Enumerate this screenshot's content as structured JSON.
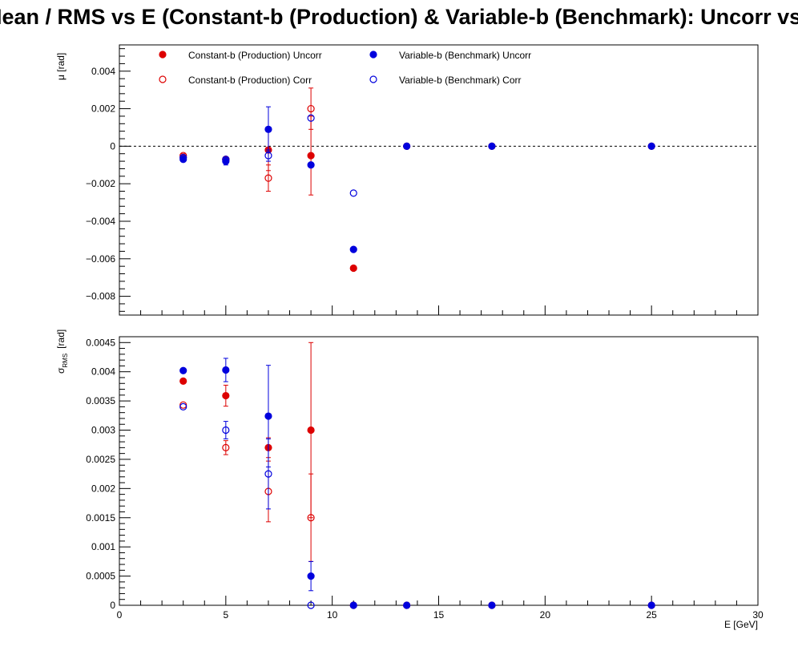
{
  "title": "Mean / RMS vs E  (Constant-b (Production) & Variable-b (Benchmark): Uncorr vs Corr)",
  "colors": {
    "production": "#dd0000",
    "benchmark": "#0000dd"
  },
  "chart_data": [
    {
      "type": "scatter",
      "ylabel": "μ  [rad]",
      "xlim": [
        0,
        30
      ],
      "ylim": [
        -0.009,
        0.0054
      ],
      "yticks": [
        {
          "v": 0.004,
          "label": "0.004"
        },
        {
          "v": 0.002,
          "label": "0.002"
        },
        {
          "v": 0,
          "label": "0"
        },
        {
          "v": -0.002,
          "label": "−0.002"
        },
        {
          "v": -0.004,
          "label": "−0.004"
        },
        {
          "v": -0.006,
          "label": "−0.006"
        },
        {
          "v": -0.008,
          "label": "−0.008"
        }
      ],
      "reference_line": 0,
      "legend": [
        {
          "label": "Constant-b (Production) Uncorr",
          "color": "#dd0000",
          "filled": true
        },
        {
          "label": "Variable-b (Benchmark) Uncorr",
          "color": "#0000dd",
          "filled": true
        },
        {
          "label": "Constant-b (Production) Corr",
          "color": "#dd0000",
          "filled": false
        },
        {
          "label": "Variable-b (Benchmark) Corr",
          "color": "#0000dd",
          "filled": false
        }
      ],
      "series": [
        {
          "name": "Constant-b (Production) Uncorr",
          "color": "#dd0000",
          "filled": true,
          "x": [
            3,
            5,
            7,
            9,
            11,
            13.5,
            17.5,
            25
          ],
          "y": [
            -0.0006,
            -0.0007,
            -0.0002,
            -0.0005,
            -0.0065,
            0,
            0,
            0
          ],
          "err": [
            0.0001,
            0.0001,
            0.0011,
            0.0021,
            0,
            0,
            0,
            0
          ]
        },
        {
          "name": "Constant-b (Production) Corr",
          "color": "#dd0000",
          "filled": false,
          "x": [
            3,
            5,
            7,
            9
          ],
          "y": [
            -0.0005,
            -0.0007,
            -0.0017,
            0.002
          ],
          "err": [
            0.0001,
            0.0001,
            0.0007,
            0.0011
          ]
        },
        {
          "name": "Variable-b (Benchmark) Uncorr",
          "color": "#0000dd",
          "filled": true,
          "x": [
            3,
            5,
            7,
            9,
            11,
            13.5,
            17.5,
            25
          ],
          "y": [
            -0.0007,
            -0.0008,
            0.0009,
            -0.001,
            -0.0055,
            0,
            0,
            0
          ],
          "err": [
            0.0001,
            0.0002,
            0.0012,
            0.0001,
            0,
            0,
            0,
            0
          ]
        },
        {
          "name": "Variable-b (Benchmark) Corr",
          "color": "#0000dd",
          "filled": false,
          "x": [
            3,
            5,
            7,
            9,
            11
          ],
          "y": [
            -0.0006,
            -0.0007,
            -0.0005,
            0.0015,
            -0.0025
          ],
          "err": [
            0.0001,
            0.0001,
            0.0003,
            0,
            0
          ]
        }
      ]
    },
    {
      "type": "scatter",
      "ylabel": "σ",
      "ylabel_sub": "RMS",
      "ylabel_unit": "[rad]",
      "xlabel": "E  [GeV]",
      "xlim": [
        0,
        30
      ],
      "ylim": [
        0,
        0.0046
      ],
      "xticks": [
        {
          "v": 0,
          "label": "0"
        },
        {
          "v": 5,
          "label": "5"
        },
        {
          "v": 10,
          "label": "10"
        },
        {
          "v": 15,
          "label": "15"
        },
        {
          "v": 20,
          "label": "20"
        },
        {
          "v": 25,
          "label": "25"
        },
        {
          "v": 30,
          "label": "30"
        }
      ],
      "yticks": [
        {
          "v": 0,
          "label": "0"
        },
        {
          "v": 0.0005,
          "label": "0.0005"
        },
        {
          "v": 0.001,
          "label": "0.001"
        },
        {
          "v": 0.0015,
          "label": "0.0015"
        },
        {
          "v": 0.002,
          "label": "0.002"
        },
        {
          "v": 0.0025,
          "label": "0.0025"
        },
        {
          "v": 0.003,
          "label": "0.003"
        },
        {
          "v": 0.0035,
          "label": "0.0035"
        },
        {
          "v": 0.004,
          "label": "0.004"
        },
        {
          "v": 0.0045,
          "label": "0.0045"
        }
      ],
      "series": [
        {
          "name": "Constant-b (Production) Uncorr",
          "color": "#dd0000",
          "filled": true,
          "x": [
            3,
            5,
            7,
            9,
            11,
            13.5,
            17.5,
            25
          ],
          "y": [
            0.00384,
            0.00359,
            0.0027,
            0.003,
            0,
            0,
            0,
            0
          ],
          "err": [
            0,
            0.00018,
            0.00017,
            0.0015,
            0,
            0,
            0,
            0
          ]
        },
        {
          "name": "Constant-b (Production) Corr",
          "color": "#dd0000",
          "filled": false,
          "x": [
            3,
            5,
            7,
            9
          ],
          "y": [
            0.00343,
            0.0027,
            0.00195,
            0.0015
          ],
          "err": [
            0,
            0.00012,
            0.00052,
            0.00075
          ]
        },
        {
          "name": "Variable-b (Benchmark) Uncorr",
          "color": "#0000dd",
          "filled": true,
          "x": [
            3,
            5,
            7,
            9,
            11,
            13.5,
            17.5,
            25
          ],
          "y": [
            0.00402,
            0.00403,
            0.00324,
            0.0005,
            0,
            0,
            0,
            0
          ],
          "err": [
            0,
            0.0002,
            0.00087,
            0.00025,
            0,
            0,
            0,
            0
          ]
        },
        {
          "name": "Variable-b (Benchmark) Corr",
          "color": "#0000dd",
          "filled": false,
          "x": [
            3,
            5,
            7,
            9
          ],
          "y": [
            0.0034,
            0.003,
            0.00225,
            0
          ],
          "err": [
            0,
            0.00015,
            0.0006,
            0
          ]
        }
      ]
    }
  ]
}
